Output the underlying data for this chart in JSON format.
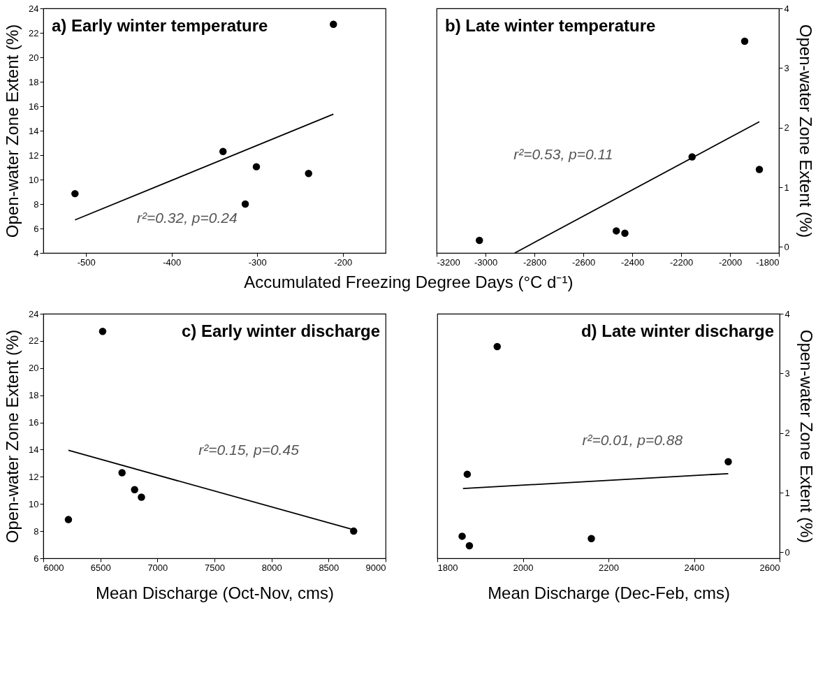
{
  "chart_data": [
    {
      "type": "scatter",
      "title": "a) Early winter temperature",
      "xlabel": "Accumulated Freezing Degree Days (°C d⁻¹)",
      "ylabel": "Open-water Zone Extent (%)",
      "xlim": [
        -550,
        -150
      ],
      "xticks": [
        -500,
        -400,
        -300,
        -200
      ],
      "ylim": [
        4,
        24
      ],
      "yticks": [
        4,
        6,
        8,
        10,
        12,
        14,
        16,
        18,
        20,
        22,
        24
      ],
      "series": [
        {
          "color": "#000000",
          "marker": "circle",
          "x": [
            -513,
            -340,
            -314,
            -301,
            -240,
            -211
          ],
          "values": [
            8.85,
            12.3,
            8.0,
            11.05,
            10.5,
            22.7
          ]
        },
        {
          "type": "line",
          "color": "#000000",
          "x": [
            -513,
            -211
          ],
          "values": [
            6.7,
            15.35
          ]
        }
      ],
      "annotations": [
        "r²=0.32, p=0.24"
      ]
    },
    {
      "type": "scatter",
      "title": "b) Late winter temperature",
      "y2label": "Open-water Zone Extent (%)",
      "xlim": [
        -3200,
        -1800
      ],
      "xticks": [
        -3200,
        -3000,
        -2800,
        -2600,
        -2400,
        -2200,
        -2000,
        -1800
      ],
      "y2lim": [
        -0.1,
        4
      ],
      "y2ticks": [
        0,
        1,
        2,
        3,
        4
      ],
      "series": [
        {
          "axis": "y2",
          "color": "#000000",
          "marker": "circle",
          "x": [
            -3025,
            -2465,
            -2430,
            -2155,
            -1940,
            -1880
          ],
          "values": [
            0.11,
            0.27,
            0.23,
            1.51,
            3.45,
            1.3
          ]
        },
        {
          "type": "line",
          "axis": "y2",
          "color": "#000000",
          "x": [
            -2880,
            -1880
          ],
          "values": [
            -0.1,
            2.1
          ]
        }
      ],
      "annotations": [
        "r²=0.53, p=0.11"
      ]
    },
    {
      "type": "scatter",
      "title": "c) Early winter discharge",
      "xlabel": "Mean  Discharge (Oct-Nov, cms)",
      "ylabel": "Open-water Zone Extent (%)",
      "xlim": [
        6000,
        9000
      ],
      "xticks": [
        6000,
        6500,
        7000,
        7500,
        8000,
        8500,
        9000
      ],
      "ylim": [
        6,
        24
      ],
      "yticks": [
        6,
        8,
        10,
        12,
        14,
        16,
        18,
        20,
        22,
        24
      ],
      "series": [
        {
          "color": "#000000",
          "marker": "circle",
          "x": [
            6220,
            6520,
            6690,
            6800,
            6860,
            8720
          ],
          "values": [
            8.85,
            22.7,
            12.3,
            11.05,
            10.5,
            8.0
          ]
        },
        {
          "type": "line",
          "color": "#000000",
          "x": [
            6220,
            8720
          ],
          "values": [
            13.95,
            8.1
          ]
        }
      ],
      "annotations": [
        "r²=0.15, p=0.45"
      ]
    },
    {
      "type": "scatter",
      "title": "d) Late winter discharge",
      "xlabel": "Mean Discharge (Dec-Feb, cms)",
      "y2label": "Open-water Zone Extent (%)",
      "xlim": [
        1800,
        2600
      ],
      "xticks": [
        1800,
        2000,
        2200,
        2400,
        2600
      ],
      "y2lim": [
        -0.1,
        4
      ],
      "y2ticks": [
        0,
        1,
        2,
        3,
        4
      ],
      "series": [
        {
          "axis": "y2",
          "color": "#000000",
          "marker": "circle",
          "x": [
            1858,
            1875,
            1870,
            1940,
            2160,
            2480
          ],
          "values": [
            0.27,
            0.11,
            1.31,
            3.45,
            0.23,
            1.52
          ]
        },
        {
          "type": "line",
          "axis": "y2",
          "color": "#000000",
          "x": [
            1860,
            2480
          ],
          "values": [
            1.07,
            1.32
          ]
        }
      ],
      "annotations": [
        "r²=0.01, p=0.88"
      ]
    }
  ]
}
